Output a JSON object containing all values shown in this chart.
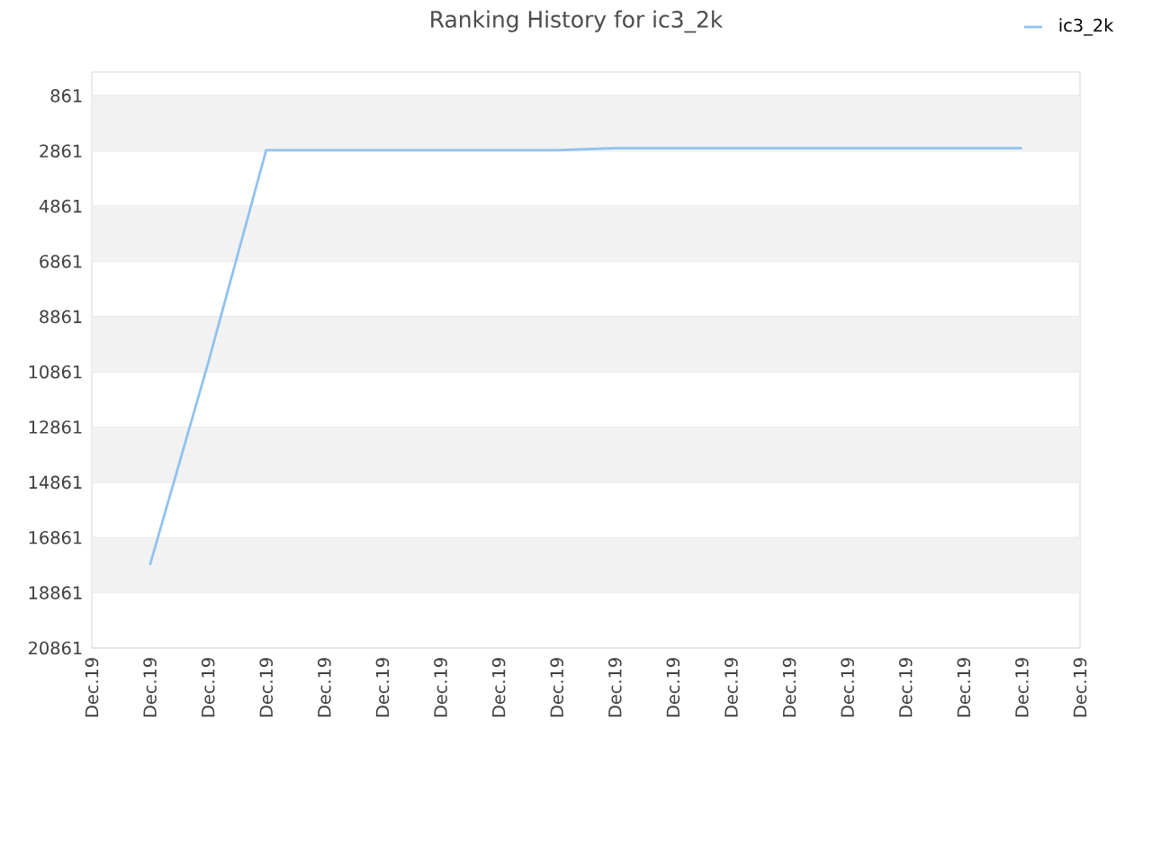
{
  "chart_data": {
    "type": "line",
    "title": "Ranking History for ic3_2k",
    "categories": [
      "Dec.19",
      "Dec.19",
      "Dec.19",
      "Dec.19",
      "Dec.19",
      "Dec.19",
      "Dec.19",
      "Dec.19",
      "Dec.19",
      "Dec.19",
      "Dec.19",
      "Dec.19",
      "Dec.19",
      "Dec.19",
      "Dec.19",
      "Dec.19",
      "Dec.19",
      "Dec.19"
    ],
    "series": [
      {
        "name": "ic3_2k",
        "color": "#90c2f0",
        "values": [
          null,
          17860,
          10550,
          2830,
          2830,
          2830,
          2830,
          2830,
          2830,
          2760,
          2760,
          2760,
          2760,
          2760,
          2760,
          2760,
          2760,
          null
        ]
      }
    ],
    "ylim": [
      20861,
      1
    ],
    "yticks": [
      861,
      2861,
      4861,
      6861,
      8861,
      10861,
      12861,
      14861,
      16861,
      18861,
      20861
    ],
    "grid": "y",
    "legend": "top right",
    "marker": "none",
    "line_style": "solid"
  }
}
